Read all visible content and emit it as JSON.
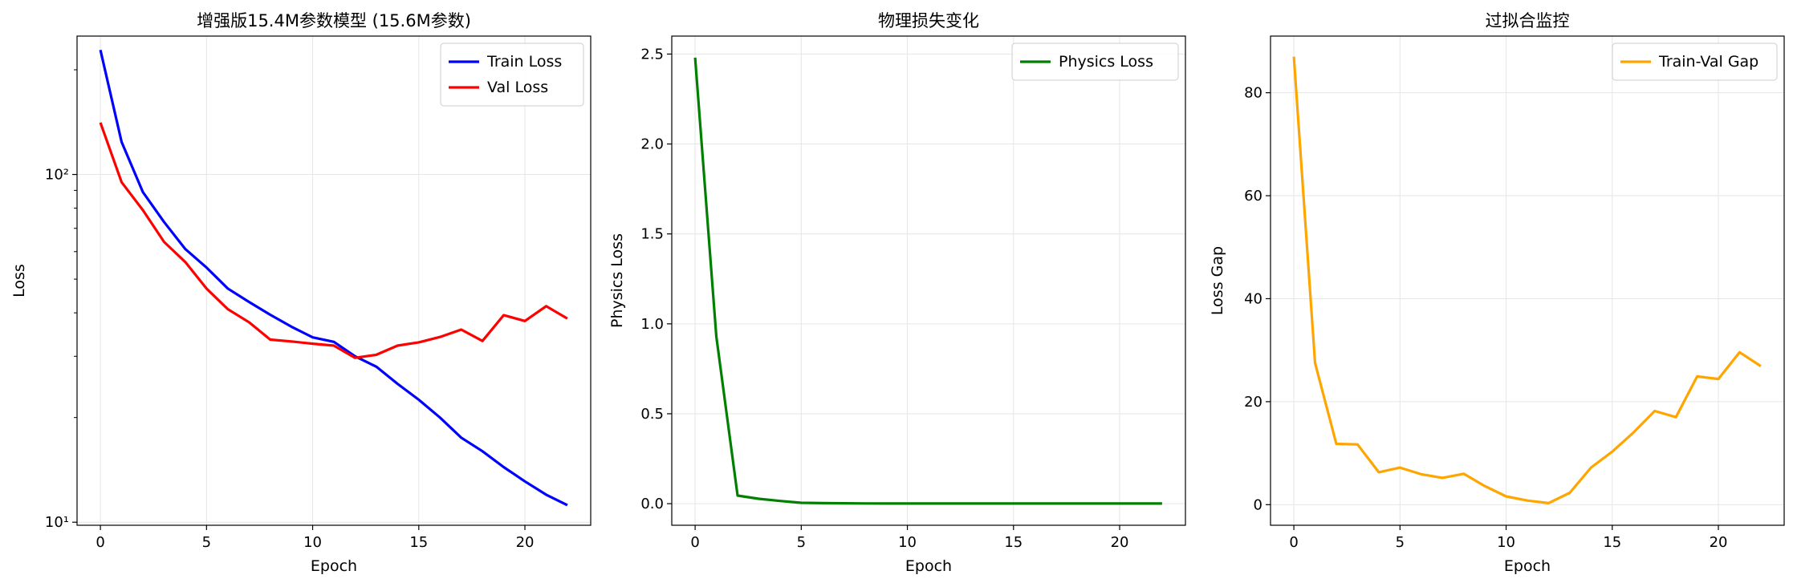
{
  "chart_data": [
    {
      "type": "line",
      "title": "增强版15.4M参数模型 (15.6M参数)",
      "xlabel": "Epoch",
      "ylabel": "Loss",
      "yscale": "log",
      "xlim": [
        -1.1,
        23.1
      ],
      "ylim": [
        9.8,
        250
      ],
      "x_ticks": [
        0,
        5,
        10,
        15,
        20
      ],
      "y_ticks": [
        10,
        100
      ],
      "y_tick_labels": [
        "10¹",
        "10²"
      ],
      "grid": true,
      "legend": "top-right",
      "x": [
        0,
        1,
        2,
        3,
        4,
        5,
        6,
        7,
        8,
        9,
        10,
        11,
        12,
        13,
        14,
        15,
        16,
        17,
        18,
        19,
        20,
        21,
        22
      ],
      "series": [
        {
          "name": "Train Loss",
          "color": "#0000ff",
          "values": [
            228,
            124,
            89,
            73,
            61,
            54,
            47,
            43,
            39.5,
            36.5,
            34,
            33,
            30,
            28,
            25,
            22.5,
            20,
            17.5,
            16,
            14.4,
            13.1,
            12,
            11.2
          ]
        },
        {
          "name": "Val Loss",
          "color": "#ff0000",
          "values": [
            141,
            95,
            79,
            64,
            56,
            47,
            41,
            37.6,
            33.5,
            33.1,
            32.6,
            32.2,
            29.7,
            30.3,
            32.2,
            32.9,
            34.1,
            35.8,
            33.2,
            39.4,
            37.9,
            41.8,
            38.5
          ]
        }
      ]
    },
    {
      "type": "line",
      "title": "物理损失变化",
      "xlabel": "Epoch",
      "ylabel": "Physics Loss",
      "xlim": [
        -1.1,
        23.1
      ],
      "ylim": [
        -0.12,
        2.6
      ],
      "x_ticks": [
        0,
        5,
        10,
        15,
        20
      ],
      "y_ticks": [
        0.0,
        0.5,
        1.0,
        1.5,
        2.0,
        2.5
      ],
      "y_tick_labels": [
        "0.0",
        "0.5",
        "1.0",
        "1.5",
        "2.0",
        "2.5"
      ],
      "grid": true,
      "legend": "top-right",
      "x": [
        0,
        1,
        2,
        3,
        4,
        5,
        6,
        7,
        8,
        9,
        10,
        11,
        12,
        13,
        14,
        15,
        16,
        17,
        18,
        19,
        20,
        21,
        22
      ],
      "series": [
        {
          "name": "Physics Loss",
          "color": "#008000",
          "values": [
            2.48,
            0.93,
            0.045,
            0.027,
            0.015,
            0.005,
            0.003,
            0.002,
            0.0015,
            0.001,
            0.001,
            0.001,
            0.001,
            0.001,
            0.001,
            0.001,
            0.001,
            0.001,
            0.001,
            0.001,
            0.001,
            0.001,
            0.001
          ]
        }
      ]
    },
    {
      "type": "line",
      "title": "过拟合监控",
      "xlabel": "Epoch",
      "ylabel": "Loss Gap",
      "xlim": [
        -1.1,
        23.1
      ],
      "ylim": [
        -4.0,
        91
      ],
      "x_ticks": [
        0,
        5,
        10,
        15,
        20
      ],
      "y_ticks": [
        0,
        20,
        40,
        60,
        80
      ],
      "y_tick_labels": [
        "0",
        "20",
        "40",
        "60",
        "80"
      ],
      "grid": true,
      "legend": "top-right",
      "x": [
        0,
        1,
        2,
        3,
        4,
        5,
        6,
        7,
        8,
        9,
        10,
        11,
        12,
        13,
        14,
        15,
        16,
        17,
        18,
        19,
        20,
        21,
        22
      ],
      "series": [
        {
          "name": "Train-Val Gap",
          "color": "#ffa500",
          "values": [
            87,
            27.5,
            11.8,
            11.7,
            6.3,
            7.2,
            5.9,
            5.2,
            6.0,
            3.6,
            1.6,
            0.8,
            0.3,
            2.3,
            7.2,
            10.3,
            14.0,
            18.2,
            17.0,
            24.9,
            24.4,
            29.6,
            26.9
          ]
        }
      ]
    }
  ]
}
